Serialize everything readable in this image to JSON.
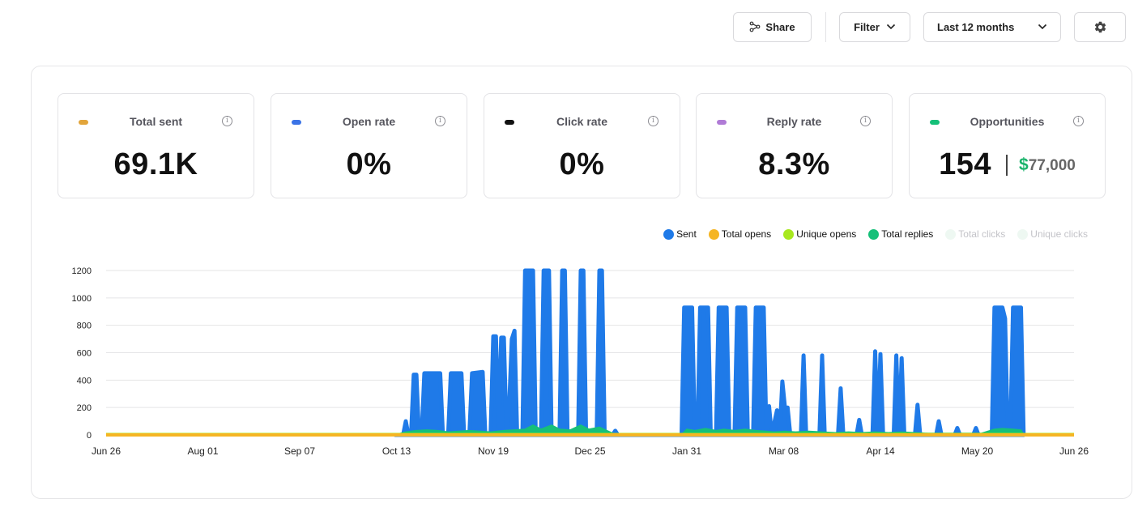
{
  "toolbar": {
    "share_label": "Share",
    "filter_label": "Filter",
    "range_label": "Last 12 months"
  },
  "cards": [
    {
      "title": "Total sent",
      "value": "69.1K",
      "color": "#e2a53b"
    },
    {
      "title": "Open rate",
      "value": "0%",
      "color": "#3b73e6"
    },
    {
      "title": "Click rate",
      "value": "0%",
      "color": "#111111"
    },
    {
      "title": "Reply rate",
      "value": "8.3%",
      "color": "#b07bd6"
    },
    {
      "title": "Opportunities",
      "value": "154",
      "currency": "$",
      "money": "77,000",
      "color": "#16c079"
    }
  ],
  "icons": [
    "share-icon",
    "chevron-down-icon",
    "gear-icon",
    "info-icon"
  ],
  "chart_data": {
    "type": "area",
    "legend_position": "top-right",
    "grid": true,
    "x_ticks": [
      "Jun 26",
      "Aug 01",
      "Sep 07",
      "Oct 13",
      "Nov 19",
      "Dec 25",
      "Jan 31",
      "Mar 08",
      "Apr 14",
      "May 20",
      "Jun 26"
    ],
    "ylim": [
      0,
      1200
    ],
    "y_ticks": [
      0,
      200,
      400,
      600,
      800,
      1000,
      1200
    ],
    "series": [
      {
        "name": "Sent",
        "color": "#1f7ae8",
        "enabled": true,
        "points": [
          [
            109,
            0
          ],
          [
            112,
            0
          ],
          [
            113,
            100
          ],
          [
            114,
            0
          ],
          [
            115,
            0
          ],
          [
            116,
            440
          ],
          [
            117,
            440
          ],
          [
            118,
            0
          ],
          [
            119,
            0
          ],
          [
            120,
            450
          ],
          [
            126,
            450
          ],
          [
            127,
            0
          ],
          [
            129,
            0
          ],
          [
            130,
            450
          ],
          [
            134,
            450
          ],
          [
            135,
            0
          ],
          [
            137,
            0
          ],
          [
            138,
            450
          ],
          [
            142,
            460
          ],
          [
            143,
            0
          ],
          [
            145,
            0
          ],
          [
            146,
            720
          ],
          [
            147,
            720
          ],
          [
            148,
            0
          ],
          [
            149,
            710
          ],
          [
            150,
            710
          ],
          [
            151,
            0
          ],
          [
            152,
            200
          ],
          [
            153,
            700
          ],
          [
            154,
            760
          ],
          [
            155,
            0
          ],
          [
            157,
            0
          ],
          [
            158,
            1200
          ],
          [
            161,
            1200
          ],
          [
            162,
            0
          ],
          [
            164,
            0
          ],
          [
            165,
            1200
          ],
          [
            167,
            1200
          ],
          [
            168,
            0
          ],
          [
            171,
            0
          ],
          [
            172,
            1200
          ],
          [
            173,
            1200
          ],
          [
            174,
            0
          ],
          [
            178,
            0
          ],
          [
            179,
            1200
          ],
          [
            180,
            1200
          ],
          [
            181,
            0
          ],
          [
            185,
            0
          ],
          [
            186,
            1200
          ],
          [
            187,
            1200
          ],
          [
            188,
            0
          ],
          [
            191,
            0
          ],
          [
            192,
            30
          ],
          [
            193,
            0
          ],
          [
            217,
            0
          ],
          [
            218,
            930
          ],
          [
            221,
            930
          ],
          [
            222,
            0
          ],
          [
            223,
            0
          ],
          [
            224,
            930
          ],
          [
            227,
            930
          ],
          [
            228,
            0
          ],
          [
            230,
            0
          ],
          [
            231,
            930
          ],
          [
            234,
            930
          ],
          [
            235,
            0
          ],
          [
            237,
            0
          ],
          [
            238,
            930
          ],
          [
            241,
            930
          ],
          [
            242,
            0
          ],
          [
            244,
            0
          ],
          [
            245,
            930
          ],
          [
            248,
            930
          ],
          [
            249,
            0
          ],
          [
            250,
            210
          ],
          [
            251,
            0
          ],
          [
            253,
            180
          ],
          [
            254,
            0
          ],
          [
            255,
            390
          ],
          [
            256,
            200
          ],
          [
            257,
            200
          ],
          [
            258,
            0
          ],
          [
            262,
            0
          ],
          [
            263,
            580
          ],
          [
            264,
            0
          ],
          [
            269,
            0
          ],
          [
            270,
            580
          ],
          [
            271,
            0
          ],
          [
            276,
            0
          ],
          [
            277,
            340
          ],
          [
            278,
            0
          ],
          [
            283,
            0
          ],
          [
            284,
            110
          ],
          [
            285,
            0
          ],
          [
            289,
            0
          ],
          [
            290,
            610
          ],
          [
            291,
            0
          ],
          [
            292,
            590
          ],
          [
            293,
            0
          ],
          [
            297,
            0
          ],
          [
            298,
            580
          ],
          [
            299,
            0
          ],
          [
            300,
            560
          ],
          [
            301,
            0
          ],
          [
            305,
            0
          ],
          [
            306,
            220
          ],
          [
            307,
            0
          ],
          [
            313,
            0
          ],
          [
            314,
            100
          ],
          [
            315,
            0
          ],
          [
            320,
            0
          ],
          [
            321,
            50
          ],
          [
            322,
            0
          ],
          [
            327,
            0
          ],
          [
            328,
            50
          ],
          [
            329,
            0
          ],
          [
            334,
            0
          ],
          [
            335,
            930
          ],
          [
            338,
            930
          ],
          [
            339,
            850
          ],
          [
            340,
            0
          ],
          [
            341,
            0
          ],
          [
            342,
            930
          ],
          [
            345,
            930
          ],
          [
            346,
            0
          ]
        ]
      },
      {
        "name": "Total opens",
        "color": "#f5b523",
        "enabled": true,
        "points": [
          [
            0,
            0
          ],
          [
            365,
            0
          ]
        ]
      },
      {
        "name": "Unique opens",
        "color": "#a8e81f",
        "enabled": true,
        "points": [
          [
            0,
            0
          ],
          [
            365,
            0
          ]
        ]
      },
      {
        "name": "Total replies",
        "color": "#16c079",
        "enabled": true,
        "points": [
          [
            109,
            0
          ],
          [
            113,
            20
          ],
          [
            117,
            30
          ],
          [
            121,
            35
          ],
          [
            125,
            30
          ],
          [
            129,
            20
          ],
          [
            133,
            25
          ],
          [
            137,
            30
          ],
          [
            141,
            25
          ],
          [
            145,
            20
          ],
          [
            150,
            30
          ],
          [
            154,
            35
          ],
          [
            158,
            40
          ],
          [
            161,
            70
          ],
          [
            164,
            40
          ],
          [
            168,
            70
          ],
          [
            171,
            40
          ],
          [
            175,
            35
          ],
          [
            179,
            70
          ],
          [
            182,
            40
          ],
          [
            186,
            55
          ],
          [
            190,
            20
          ],
          [
            192,
            0
          ],
          [
            217,
            0
          ],
          [
            219,
            40
          ],
          [
            222,
            30
          ],
          [
            226,
            45
          ],
          [
            230,
            30
          ],
          [
            233,
            40
          ],
          [
            237,
            30
          ],
          [
            241,
            40
          ],
          [
            245,
            30
          ],
          [
            249,
            25
          ],
          [
            252,
            20
          ],
          [
            256,
            25
          ],
          [
            260,
            20
          ],
          [
            265,
            25
          ],
          [
            270,
            20
          ],
          [
            275,
            15
          ],
          [
            280,
            20
          ],
          [
            285,
            15
          ],
          [
            290,
            20
          ],
          [
            295,
            15
          ],
          [
            300,
            20
          ],
          [
            305,
            15
          ],
          [
            310,
            10
          ],
          [
            320,
            10
          ],
          [
            325,
            10
          ],
          [
            330,
            10
          ],
          [
            335,
            40
          ],
          [
            338,
            45
          ],
          [
            342,
            40
          ],
          [
            345,
            35
          ],
          [
            346,
            0
          ]
        ]
      },
      {
        "name": "Total clicks",
        "color": "#eef8f2",
        "enabled": false,
        "points": []
      },
      {
        "name": "Unique clicks",
        "color": "#eef8f2",
        "enabled": false,
        "points": []
      }
    ]
  }
}
